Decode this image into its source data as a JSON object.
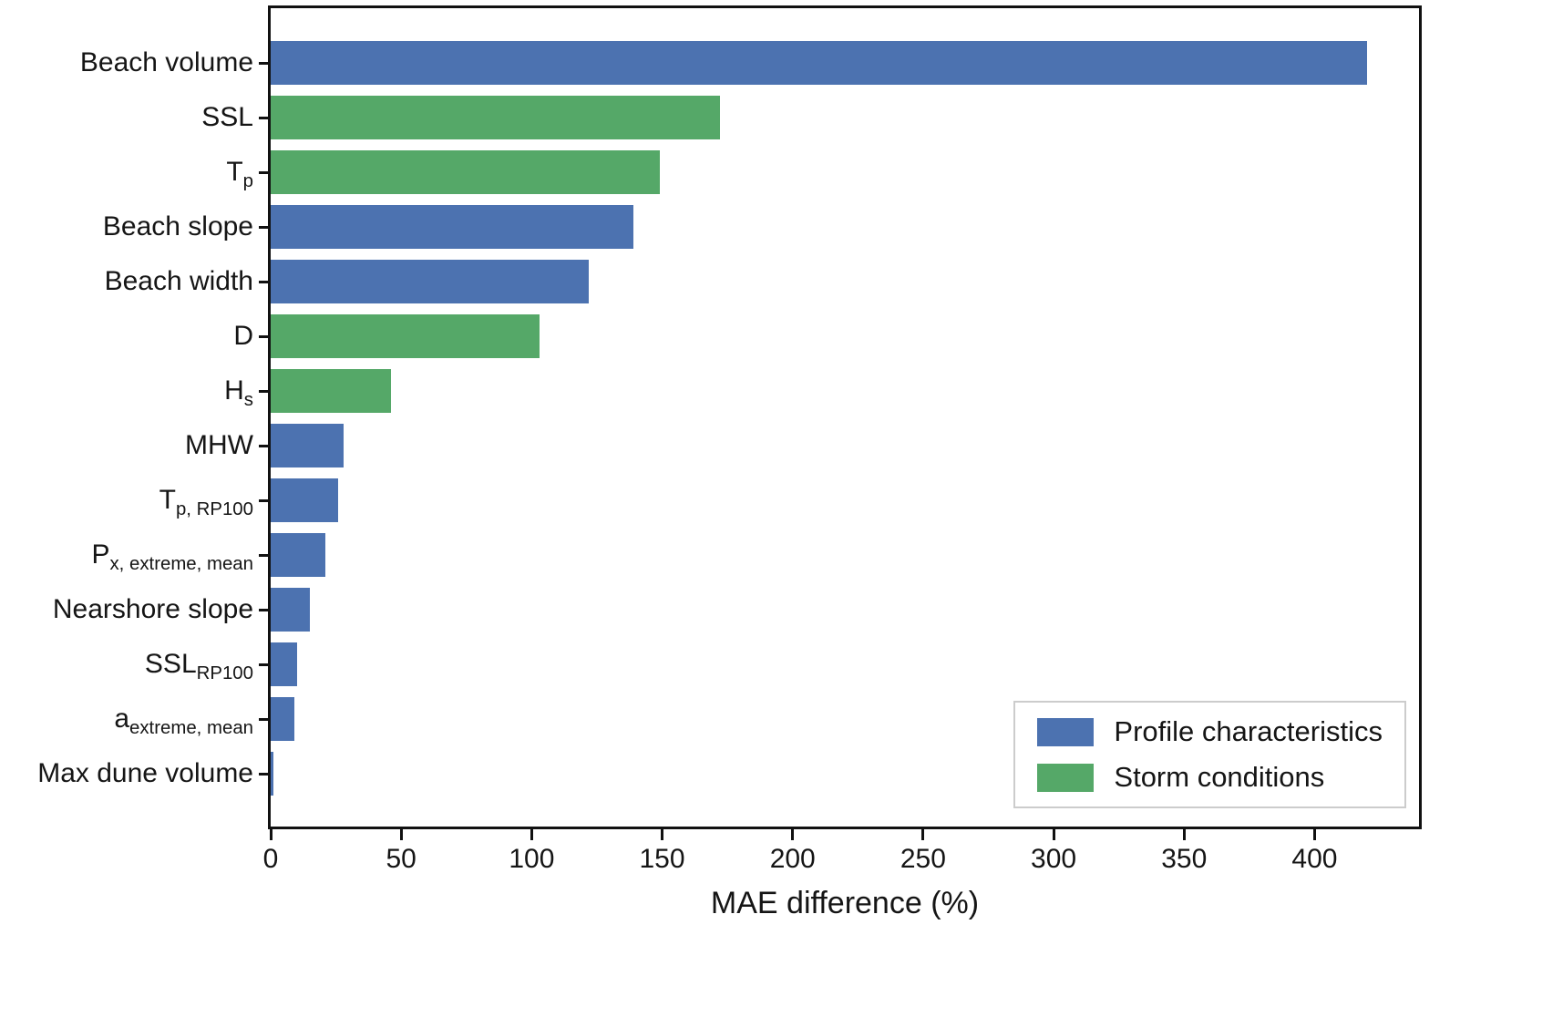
{
  "chart_data": {
    "type": "bar",
    "orientation": "horizontal",
    "title": "",
    "xlabel": "MAE difference (%)",
    "ylabel": "",
    "xlim": [
      0,
      440
    ],
    "xticks": [
      0,
      50,
      100,
      150,
      200,
      250,
      300,
      350,
      400
    ],
    "grid": false,
    "legend_position": "lower right",
    "groups": {
      "profile": {
        "label": "Profile characteristics",
        "color": "#4C72B0"
      },
      "storm": {
        "label": "Storm conditions",
        "color": "#55A868"
      }
    },
    "bars": [
      {
        "label": "Beach volume",
        "sub": "",
        "value": 420,
        "group": "profile"
      },
      {
        "label": "SSL",
        "sub": "",
        "value": 172,
        "group": "storm"
      },
      {
        "label": "T",
        "sub": "p",
        "value": 149,
        "group": "storm"
      },
      {
        "label": "Beach slope",
        "sub": "",
        "value": 139,
        "group": "profile"
      },
      {
        "label": "Beach width",
        "sub": "",
        "value": 122,
        "group": "profile"
      },
      {
        "label": "D",
        "sub": "",
        "value": 103,
        "group": "storm"
      },
      {
        "label": "H",
        "sub": "s",
        "value": 46,
        "group": "storm"
      },
      {
        "label": "MHW",
        "sub": "",
        "value": 28,
        "group": "profile"
      },
      {
        "label": "T",
        "sub": "p, RP100",
        "value": 26,
        "group": "profile"
      },
      {
        "label": "P",
        "sub": "x, extreme, mean",
        "value": 21,
        "group": "profile"
      },
      {
        "label": "Nearshore slope",
        "sub": "",
        "value": 15,
        "group": "profile"
      },
      {
        "label": "SSL",
        "sub": "RP100",
        "value": 10,
        "group": "profile"
      },
      {
        "label": "a",
        "sub": "extreme, mean",
        "value": 9,
        "group": "profile"
      },
      {
        "label": "Max dune volume",
        "sub": "",
        "value": 1,
        "group": "profile"
      }
    ],
    "legend": [
      {
        "label": "Profile characteristics",
        "color": "#4C72B0"
      },
      {
        "label": "Storm conditions",
        "color": "#55A868"
      }
    ]
  }
}
